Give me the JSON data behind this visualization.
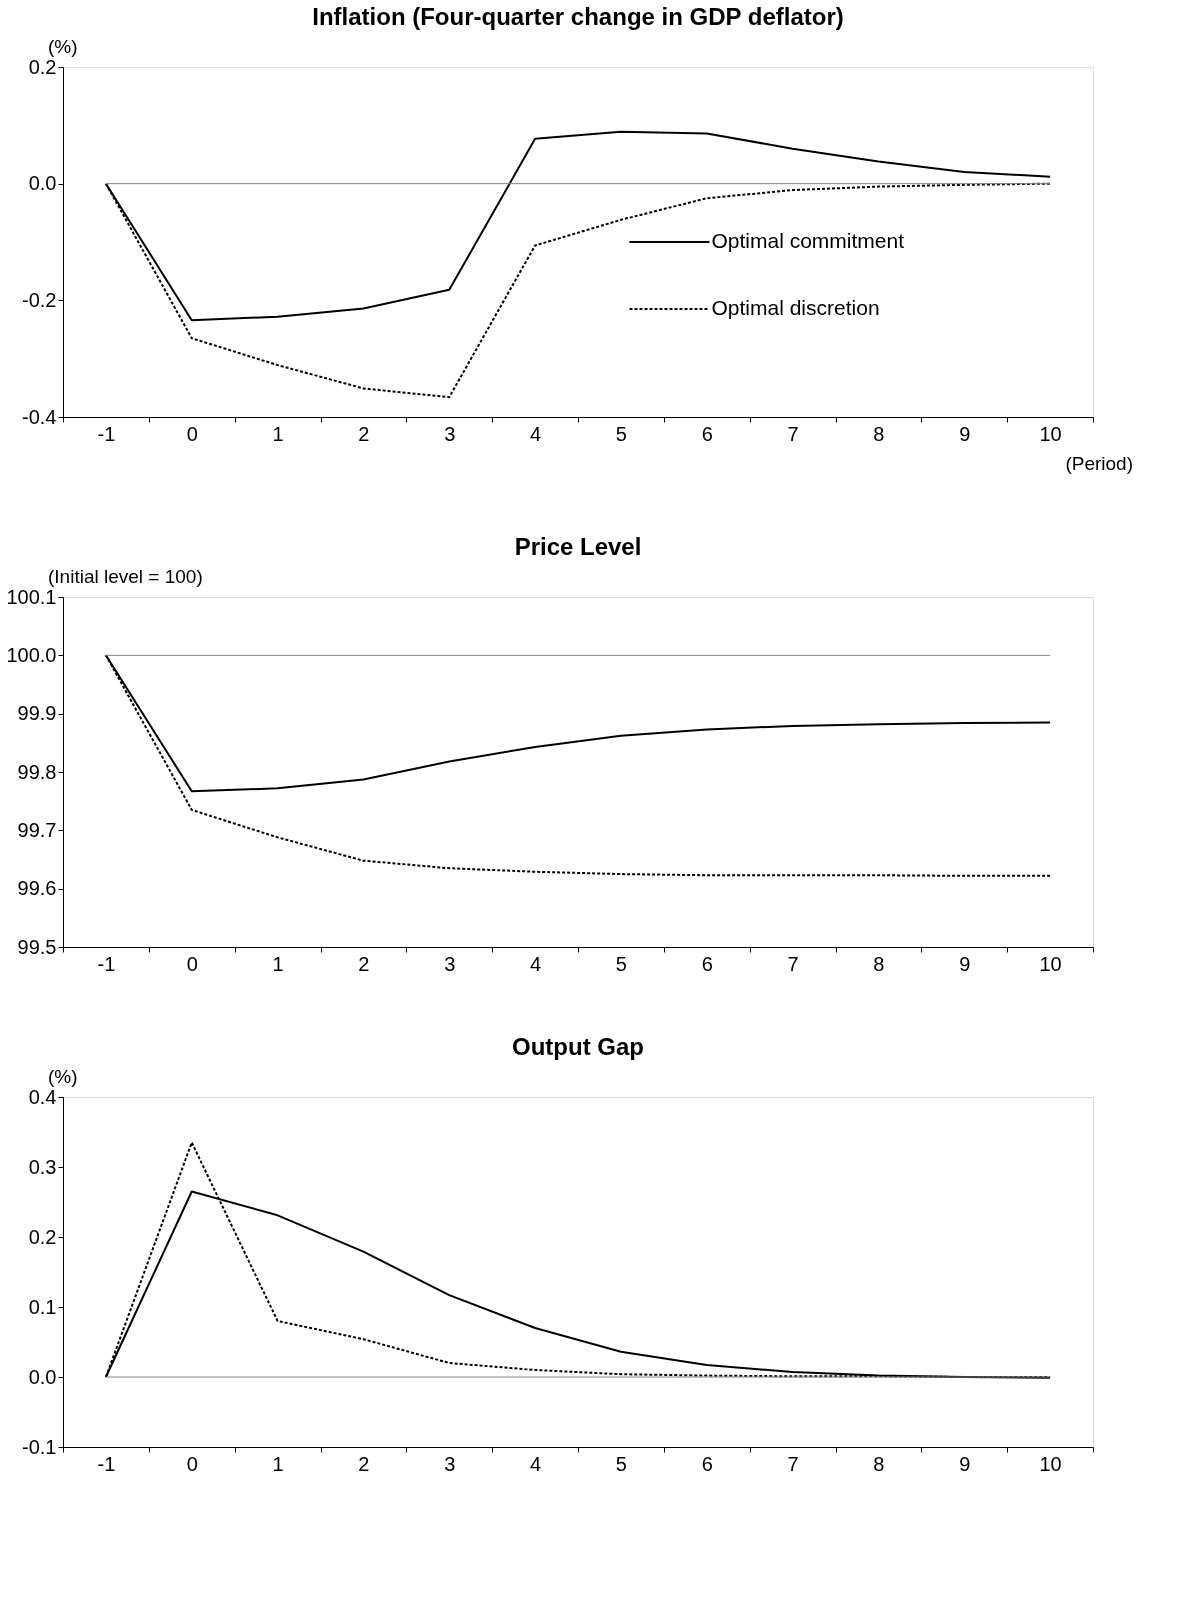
{
  "chart_data": [
    {
      "type": "line",
      "title": "Inflation (Four-quarter change in GDP deflator)",
      "annotations": [
        "(%)",
        "(Period)"
      ],
      "categories": [
        "-1",
        "0",
        "1",
        "2",
        "3",
        "4",
        "5",
        "6",
        "7",
        "8",
        "9",
        "10"
      ],
      "series": [
        {
          "name": "Optimal commitment",
          "color": "#000000",
          "line_style": "solid",
          "values": [
            0,
            -0.234,
            -0.228,
            -0.214,
            -0.182,
            0.077,
            0.089,
            0.086,
            0.06,
            0.038,
            0.02,
            0.012
          ]
        },
        {
          "name": "Optimal discretion",
          "color": "#000000",
          "line_style": "dashed",
          "values": [
            0,
            -0.265,
            -0.311,
            -0.351,
            -0.366,
            -0.106,
            -0.062,
            -0.025,
            -0.011,
            -0.005,
            -0.002,
            0
          ]
        }
      ],
      "ylim": [
        -0.4,
        0.2
      ],
      "yticks": [
        {
          "value": -0.4,
          "label": "-0.4"
        },
        {
          "value": -0.2,
          "label": "-0.2"
        },
        {
          "value": 0,
          "label": "0.0"
        },
        {
          "value": 0.2,
          "label": "0.2"
        }
      ],
      "ref_lines": [
        {
          "axis": "y",
          "value": 0,
          "color": "#808080"
        }
      ],
      "legend": "right",
      "grid": false,
      "marker": "none"
    },
    {
      "type": "line",
      "title": "Price Level",
      "annotations": [
        "(Initial level = 100)"
      ],
      "categories": [
        "-1",
        "0",
        "1",
        "2",
        "3",
        "4",
        "5",
        "6",
        "7",
        "8",
        "9",
        "10"
      ],
      "series": [
        {
          "color": "#000000",
          "line_style": "solid",
          "values": [
            100,
            99.767,
            99.772,
            99.787,
            99.818,
            99.843,
            99.862,
            99.873,
            99.879,
            99.882,
            99.884,
            99.885
          ]
        },
        {
          "color": "#000000",
          "line_style": "dashed",
          "values": [
            100,
            99.735,
            99.688,
            99.648,
            99.635,
            99.629,
            99.625,
            99.623,
            99.623,
            99.623,
            99.622,
            99.622
          ]
        }
      ],
      "ylim": [
        99.5,
        100.1
      ],
      "yticks": [
        99.5,
        99.6,
        99.7,
        99.8,
        99.9,
        {
          "value": 100,
          "label": "100.0"
        },
        100.1
      ],
      "ref_lines": [
        {
          "axis": "y",
          "value": 100,
          "color": "#808080"
        }
      ],
      "legend": false,
      "grid": false,
      "marker": "none"
    },
    {
      "type": "line",
      "title": "Output Gap",
      "annotations": [
        "(%)"
      ],
      "categories": [
        "-1",
        "0",
        "1",
        "2",
        "3",
        "4",
        "5",
        "6",
        "7",
        "8",
        "9",
        "10"
      ],
      "series": [
        {
          "color": "#000000",
          "line_style": "solid",
          "values": [
            0,
            0.265,
            0.231,
            0.179,
            0.117,
            0.07,
            0.036,
            0.017,
            0.007,
            0.002,
            0,
            -0.001
          ]
        },
        {
          "color": "#000000",
          "line_style": "dashed",
          "values": [
            0,
            0.335,
            0.08,
            0.054,
            0.02,
            0.01,
            0.004,
            0.002,
            0.001,
            0.001,
            0,
            0
          ]
        }
      ],
      "ylim": [
        -0.1,
        0.4
      ],
      "yticks": [
        -0.1,
        {
          "value": 0,
          "label": "0.0"
        },
        0.1,
        0.2,
        0.3,
        0.4
      ],
      "ref_lines": [
        {
          "axis": "y",
          "value": 0,
          "color": "#808080"
        }
      ],
      "legend": false,
      "grid": false,
      "marker": "none"
    }
  ]
}
